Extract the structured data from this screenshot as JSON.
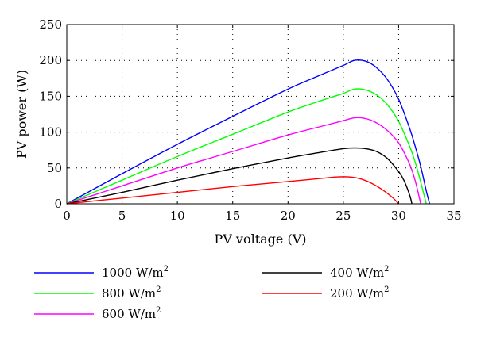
{
  "chart_data": {
    "type": "line",
    "title": "",
    "xlabel": "PV voltage (V)",
    "ylabel": "PV power (W)",
    "xlim": [
      0,
      35
    ],
    "ylim": [
      0,
      250
    ],
    "xticks": [
      "0",
      "5",
      "10",
      "15",
      "20",
      "25",
      "30",
      "35"
    ],
    "yticks": [
      "0",
      "50",
      "100",
      "150",
      "200",
      "250"
    ],
    "grid": true,
    "grid_style": "dotted",
    "legend_position": "below",
    "series": [
      {
        "name": "1000 W/m",
        "name_sup": "2",
        "color": "#0000ff",
        "x": [
          0,
          5,
          10,
          15,
          20,
          23,
          25,
          26,
          27,
          28,
          29,
          30,
          31,
          31.5,
          32,
          32.5,
          32.8
        ],
        "y": [
          0,
          42,
          83,
          122,
          160,
          180,
          193,
          200,
          199,
          190,
          173,
          146,
          105,
          80,
          52,
          18,
          0
        ]
      },
      {
        "name": "800 W/m",
        "name_sup": "2",
        "color": "#00ff00",
        "x": [
          0,
          5,
          10,
          15,
          20,
          23,
          25,
          26,
          27,
          28,
          29,
          30,
          31,
          31.5,
          32,
          32.5
        ],
        "y": [
          0,
          33,
          66,
          97,
          128,
          144,
          154,
          160,
          159,
          152,
          138,
          115,
          80,
          58,
          30,
          0
        ]
      },
      {
        "name": "600 W/m",
        "name_sup": "2",
        "color": "#ff00ff",
        "x": [
          0,
          5,
          10,
          15,
          20,
          23,
          25,
          26,
          27,
          28,
          29,
          30,
          31,
          31.5,
          32
        ],
        "y": [
          0,
          25,
          50,
          73,
          96,
          108,
          116,
          120,
          119,
          113,
          102,
          85,
          55,
          32,
          0
        ]
      },
      {
        "name": "400 W/m",
        "name_sup": "2",
        "color": "#000000",
        "x": [
          0,
          5,
          10,
          15,
          20,
          23,
          25,
          26,
          27,
          28,
          29,
          30,
          30.5,
          31,
          31.2
        ],
        "y": [
          0,
          16,
          33,
          49,
          64,
          72,
          77,
          78,
          77,
          73,
          63,
          45,
          32,
          12,
          0
        ]
      },
      {
        "name": "200 W/m",
        "name_sup": "2",
        "color": "#ff0000",
        "x": [
          0,
          5,
          10,
          15,
          20,
          23,
          24.5,
          25.5,
          26.5,
          27.5,
          28.5,
          29.5,
          30
        ],
        "y": [
          0,
          8,
          16,
          24,
          31,
          35.5,
          37.5,
          37.5,
          35,
          29,
          20,
          8,
          0
        ]
      }
    ]
  }
}
